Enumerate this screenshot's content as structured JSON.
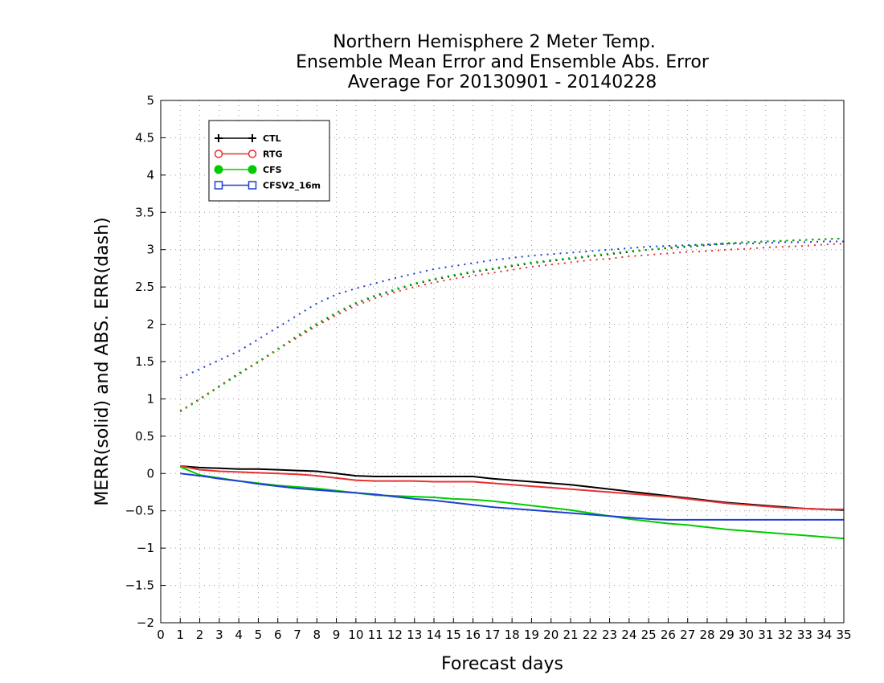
{
  "chart_data": {
    "type": "line",
    "title": [
      "Northern Hemisphere 2 Meter Temp.",
      "Ensemble Mean Error and Ensemble Abs. Error",
      "Average For 20130901 - 20140228"
    ],
    "xlabel": "Forecast days",
    "ylabel": "MERR(solid) and ABS. ERR(dash)",
    "xlim": [
      0,
      35
    ],
    "ylim": [
      -2,
      5
    ],
    "x_ticks": [
      0,
      1,
      2,
      3,
      4,
      5,
      6,
      7,
      8,
      9,
      10,
      11,
      12,
      13,
      14,
      15,
      16,
      17,
      18,
      19,
      20,
      21,
      22,
      23,
      24,
      25,
      26,
      27,
      28,
      29,
      30,
      31,
      32,
      33,
      34,
      35
    ],
    "y_ticks": [
      -2,
      -1.5,
      -1,
      -0.5,
      0,
      0.5,
      1,
      1.5,
      2,
      2.5,
      3,
      3.5,
      4,
      4.5,
      5
    ],
    "y_tick_labels": [
      "−2",
      "−1.5",
      "−1",
      "−0.5",
      "0",
      "0.5",
      "1",
      "1.5",
      "2",
      "2.5",
      "3",
      "3.5",
      "4",
      "4.5",
      "5"
    ],
    "grid": true,
    "legend_position": "top-left",
    "x": [
      1,
      2,
      3,
      4,
      5,
      6,
      7,
      8,
      9,
      10,
      11,
      12,
      13,
      14,
      15,
      16,
      17,
      18,
      19,
      20,
      21,
      22,
      23,
      24,
      25,
      26,
      27,
      28,
      29,
      30,
      31,
      32,
      33,
      34,
      35
    ],
    "series": [
      {
        "name": "CTL",
        "color": "#000000",
        "marker": "plus",
        "merr": [
          0.1,
          0.08,
          0.07,
          0.06,
          0.06,
          0.05,
          0.04,
          0.03,
          0.0,
          -0.03,
          -0.04,
          -0.04,
          -0.04,
          -0.04,
          -0.04,
          -0.04,
          -0.07,
          -0.09,
          -0.11,
          -0.13,
          -0.15,
          -0.18,
          -0.21,
          -0.24,
          -0.27,
          -0.3,
          -0.33,
          -0.36,
          -0.39,
          -0.41,
          -0.43,
          -0.45,
          -0.47,
          -0.48,
          -0.49
        ],
        "abs": [
          0.83,
          1.0,
          1.17,
          1.34,
          1.5,
          1.67,
          1.84,
          2.0,
          2.15,
          2.28,
          2.38,
          2.46,
          2.54,
          2.6,
          2.65,
          2.7,
          2.74,
          2.78,
          2.82,
          2.85,
          2.88,
          2.91,
          2.94,
          2.97,
          3.0,
          3.02,
          3.04,
          3.06,
          3.08,
          3.1,
          3.11,
          3.12,
          3.13,
          3.14,
          3.15
        ]
      },
      {
        "name": "RTG",
        "color": "#e83030",
        "marker": "circle-open",
        "merr": [
          0.1,
          0.05,
          0.03,
          0.02,
          0.01,
          0.0,
          -0.01,
          -0.03,
          -0.06,
          -0.09,
          -0.1,
          -0.1,
          -0.1,
          -0.11,
          -0.11,
          -0.11,
          -0.13,
          -0.15,
          -0.17,
          -0.19,
          -0.21,
          -0.23,
          -0.25,
          -0.27,
          -0.29,
          -0.31,
          -0.34,
          -0.37,
          -0.4,
          -0.42,
          -0.44,
          -0.46,
          -0.47,
          -0.48,
          -0.48
        ],
        "abs": [
          0.84,
          1.0,
          1.17,
          1.33,
          1.49,
          1.66,
          1.82,
          1.98,
          2.12,
          2.25,
          2.35,
          2.43,
          2.5,
          2.56,
          2.61,
          2.65,
          2.69,
          2.73,
          2.77,
          2.8,
          2.83,
          2.86,
          2.88,
          2.91,
          2.93,
          2.95,
          2.97,
          2.98,
          3.0,
          3.01,
          3.03,
          3.04,
          3.05,
          3.07,
          3.08
        ]
      },
      {
        "name": "CFS",
        "color": "#00cc00",
        "marker": "circle-filled",
        "merr": [
          0.09,
          -0.02,
          -0.06,
          -0.1,
          -0.13,
          -0.16,
          -0.18,
          -0.2,
          -0.23,
          -0.26,
          -0.29,
          -0.3,
          -0.31,
          -0.32,
          -0.34,
          -0.35,
          -0.37,
          -0.4,
          -0.43,
          -0.46,
          -0.49,
          -0.53,
          -0.57,
          -0.61,
          -0.64,
          -0.67,
          -0.69,
          -0.72,
          -0.75,
          -0.77,
          -0.79,
          -0.81,
          -0.83,
          -0.85,
          -0.87
        ],
        "abs": [
          0.83,
          0.99,
          1.16,
          1.33,
          1.5,
          1.67,
          1.85,
          2.01,
          2.16,
          2.29,
          2.39,
          2.47,
          2.55,
          2.61,
          2.66,
          2.71,
          2.75,
          2.79,
          2.83,
          2.86,
          2.89,
          2.92,
          2.95,
          2.98,
          3.0,
          3.03,
          3.05,
          3.07,
          3.09,
          3.1,
          3.11,
          3.12,
          3.13,
          3.14,
          3.15
        ]
      },
      {
        "name": "CFSV2_16m",
        "color": "#1c3fd6",
        "marker": "square-open",
        "merr": [
          0.0,
          -0.03,
          -0.07,
          -0.1,
          -0.14,
          -0.17,
          -0.2,
          -0.22,
          -0.24,
          -0.26,
          -0.28,
          -0.31,
          -0.34,
          -0.36,
          -0.39,
          -0.42,
          -0.45,
          -0.47,
          -0.49,
          -0.51,
          -0.53,
          -0.55,
          -0.57,
          -0.59,
          -0.61,
          -0.62,
          -0.62,
          -0.62,
          -0.62,
          -0.62,
          -0.62,
          -0.62,
          -0.62,
          -0.62,
          -0.62
        ],
        "abs": [
          1.28,
          1.4,
          1.52,
          1.64,
          1.8,
          1.96,
          2.12,
          2.28,
          2.4,
          2.48,
          2.55,
          2.62,
          2.68,
          2.74,
          2.78,
          2.82,
          2.86,
          2.89,
          2.92,
          2.94,
          2.96,
          2.98,
          3.0,
          3.02,
          3.04,
          3.05,
          3.06,
          3.07,
          3.08,
          3.08,
          3.09,
          3.1,
          3.1,
          3.11,
          3.11
        ]
      }
    ]
  }
}
